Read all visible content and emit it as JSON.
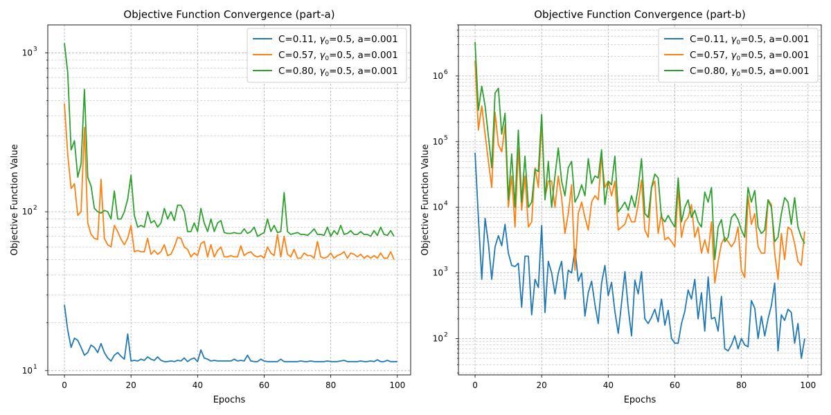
{
  "chart_data": [
    {
      "type": "line",
      "title": "Objective Function Convergence (part-a)",
      "xlabel": "Epochs",
      "ylabel": "Objective Function Value",
      "yscale": "log",
      "xlim": [
        -5,
        104
      ],
      "ylim": [
        9.4,
        1500
      ],
      "xticks": [
        0,
        20,
        40,
        60,
        80,
        100
      ],
      "yticks": [
        10,
        100,
        1000
      ],
      "yticks_major_labels": [
        "10",
        "10",
        "10"
      ],
      "yticks_major_exponents": [
        "1",
        "2",
        "3"
      ],
      "grid": true,
      "legend_position": "upper-right",
      "series": [
        {
          "name": "C=0.11, γ0=0.5, a=0.001",
          "legend_prefix": "C=0.11, ",
          "legend_symbol": "γ",
          "legend_subscript": "0",
          "legend_suffix": "=0.5, a=0.001",
          "color": "#1f77b4",
          "values": [
            26,
            18,
            14,
            16,
            15.5,
            14,
            12.5,
            13,
            14.5,
            14,
            13,
            14.8,
            13,
            12,
            11.5,
            12.5,
            13,
            12.3,
            11.8,
            17,
            11.5,
            11.6,
            11.5,
            11.8,
            11.6,
            12.2,
            11.8,
            11.6,
            12.2,
            11.6,
            11.4,
            11.4,
            11.5,
            11.4,
            11.6,
            11.5,
            12,
            11.4,
            11.8,
            12,
            11.4,
            13.5,
            12,
            11.8,
            11.5,
            11.6,
            11.5,
            11.5,
            11.5,
            11.5,
            11.5,
            11.8,
            11.5,
            11.6,
            11.5,
            12.5,
            11.5,
            11.4,
            11.4,
            11.8,
            11.5,
            11.4,
            11.4,
            11.4,
            11.4,
            11.8,
            11.4,
            11.4,
            11.4,
            11.4,
            11.4,
            11.5,
            11.4,
            11.4,
            11.5,
            11.4,
            11.4,
            11.4,
            11.4,
            11.5,
            11.4,
            11.4,
            11.4,
            11.5,
            11.6,
            11.4,
            11.4,
            11.4,
            11.4,
            11.5,
            11.4,
            11.4,
            11.5,
            11.4,
            11.7,
            11.4,
            11.4,
            11.6,
            11.4,
            11.4,
            11.4
          ]
        },
        {
          "name": "C=0.57, γ0=0.5, a=0.001",
          "legend_prefix": "C=0.57, ",
          "legend_symbol": "γ",
          "legend_subscript": "0",
          "legend_suffix": "=0.5, a=0.001",
          "color": "#ff7f0e",
          "values": [
            480,
            230,
            140,
            150,
            95,
            100,
            340,
            85,
            72,
            68,
            67,
            160,
            68,
            62,
            60,
            82,
            75,
            67,
            62,
            68,
            82,
            56,
            57,
            56,
            56,
            68,
            54,
            57,
            54,
            56,
            62,
            53,
            54,
            60,
            69,
            68,
            60,
            58,
            52,
            55,
            53,
            63,
            65,
            52,
            62,
            52,
            57,
            60,
            52,
            52,
            53,
            52,
            52,
            61,
            53,
            55,
            56,
            53,
            52,
            53,
            51,
            60,
            55,
            53,
            72,
            52,
            70,
            54,
            52,
            58,
            51,
            51,
            55,
            53,
            53,
            51,
            65,
            52,
            51,
            52,
            55,
            51,
            53,
            54,
            56,
            51,
            55,
            54,
            52,
            54,
            51,
            53,
            51,
            53,
            51,
            55,
            51,
            51,
            56,
            50
          ]
        },
        {
          "name": "C=0.80, γ0=0.5, a=0.001",
          "legend_prefix": "C=0.80, ",
          "legend_symbol": "γ",
          "legend_subscript": "0",
          "legend_suffix": "=0.5, a=0.001",
          "color": "#2ca02c",
          "values": [
            1150,
            750,
            245,
            280,
            165,
            200,
            590,
            165,
            145,
            105,
            100,
            98,
            102,
            100,
            90,
            135,
            90,
            90,
            100,
            120,
            170,
            95,
            80,
            82,
            80,
            100,
            85,
            88,
            80,
            85,
            105,
            90,
            100,
            88,
            110,
            110,
            100,
            75,
            75,
            85,
            75,
            105,
            85,
            75,
            90,
            75,
            85,
            88,
            74,
            73,
            73,
            74,
            73,
            73,
            78,
            73,
            75,
            80,
            70,
            72,
            74,
            90,
            75,
            82,
            74,
            75,
            132,
            75,
            72,
            73,
            74,
            72,
            72,
            71,
            74,
            78,
            72,
            72,
            71,
            80,
            70,
            76,
            72,
            82,
            72,
            73,
            76,
            72,
            72,
            75,
            72,
            72,
            70,
            76,
            71,
            80,
            72,
            71,
            76,
            70
          ]
        }
      ]
    },
    {
      "type": "line",
      "title": "Objective Function Convergence (part-b)",
      "xlabel": "Epochs",
      "ylabel": "Objective Function Value",
      "yscale": "log",
      "xlim": [
        -5,
        104
      ],
      "ylim": [
        28,
        6000000
      ],
      "xticks": [
        0,
        20,
        40,
        60,
        80,
        100
      ],
      "yticks": [
        100,
        1000,
        10000,
        100000,
        1000000
      ],
      "yticks_major_labels": [
        "10",
        "10",
        "10",
        "10",
        "10"
      ],
      "yticks_major_exponents": [
        "2",
        "3",
        "4",
        "5",
        "6"
      ],
      "grid": true,
      "legend_position": "upper-right",
      "series": [
        {
          "name": "C=0.11, γ0=0.5, a=0.001",
          "legend_prefix": "C=0.11, ",
          "legend_symbol": "γ",
          "legend_subscript": "0",
          "legend_suffix": "=0.5, a=0.001",
          "color": "#1f77b4",
          "values": [
            68000,
            7000,
            800,
            6800,
            2800,
            800,
            2500,
            3700,
            2600,
            5500,
            2000,
            1300,
            1250,
            1400,
            300,
            1800,
            1800,
            230,
            800,
            600,
            5300,
            250,
            1500,
            1000,
            480,
            1000,
            1500,
            400,
            1100,
            1000,
            2300,
            750,
            1000,
            220,
            500,
            750,
            330,
            170,
            700,
            1300,
            450,
            720,
            260,
            120,
            350,
            1050,
            290,
            110,
            780,
            480,
            1050,
            200,
            170,
            210,
            280,
            180,
            400,
            160,
            270,
            100,
            85,
            85,
            170,
            260,
            550,
            400,
            800,
            200,
            500,
            130,
            870,
            200,
            210,
            130,
            440,
            70,
            65,
            80,
            110,
            70,
            100,
            80,
            75,
            380,
            290,
            100,
            220,
            110,
            200,
            320,
            700,
            65,
            230,
            190,
            280,
            250,
            85,
            170,
            50,
            100
          ]
        },
        {
          "name": "C=0.57, γ0=0.5, a=0.001",
          "legend_prefix": "C=0.57, ",
          "legend_symbol": "γ",
          "legend_subscript": "0",
          "legend_suffix": "=0.5, a=0.001",
          "color": "#ff7f0e",
          "values": [
            1700000,
            150000,
            350000,
            130000,
            50000,
            20000,
            280000,
            90000,
            70000,
            180000,
            10000,
            30000,
            5000,
            80000,
            9000,
            30000,
            5000,
            6000,
            40000,
            20000,
            200000,
            14000,
            25000,
            25000,
            10000,
            30000,
            14000,
            4000,
            8000,
            22000,
            1100,
            8000,
            12000,
            7000,
            4500,
            12000,
            15000,
            13000,
            60000,
            20000,
            25000,
            15000,
            25000,
            4500,
            5000,
            5500,
            8000,
            6000,
            6000,
            11000,
            26000,
            4500,
            3500,
            20000,
            25000,
            4000,
            8000,
            3200,
            3500,
            3000,
            2500,
            20000,
            3500,
            6000,
            7000,
            11000,
            3500,
            5000,
            2000,
            3200,
            2000,
            6000,
            700,
            1500,
            2800,
            3500,
            3000,
            2500,
            3000,
            5000,
            1100,
            850,
            15000,
            5500,
            8000,
            2500,
            2000,
            2000,
            13000,
            11000,
            2000,
            800,
            4000,
            1600,
            5000,
            4500,
            2800,
            1500,
            1300,
            4300
          ]
        },
        {
          "name": "C=0.80, γ0=0.5, a=0.001",
          "legend_prefix": "C=0.80, ",
          "legend_symbol": "γ",
          "legend_subscript": "0",
          "legend_suffix": "=0.5, a=0.001",
          "color": "#2ca02c",
          "values": [
            3300000,
            300000,
            700000,
            350000,
            120000,
            40000,
            550000,
            650000,
            130000,
            270000,
            13000,
            65000,
            10000,
            150000,
            12000,
            60000,
            10000,
            12000,
            38000,
            35000,
            260000,
            13000,
            50000,
            10000,
            30000,
            80000,
            25000,
            15000,
            40000,
            50000,
            12000,
            15000,
            22000,
            15000,
            55000,
            23000,
            30000,
            28000,
            75000,
            11000,
            25000,
            22000,
            60000,
            8500,
            10000,
            12000,
            9000,
            15000,
            10000,
            20000,
            55000,
            8000,
            7000,
            20000,
            32000,
            28000,
            7000,
            6000,
            7500,
            6000,
            5000,
            28000,
            6000,
            10000,
            13000,
            7000,
            9000,
            6000,
            5000,
            17000,
            12000,
            20000,
            1600,
            5000,
            6500,
            3000,
            3500,
            7000,
            8000,
            6500,
            4500,
            3500,
            20000,
            12000,
            18000,
            5000,
            4000,
            4500,
            13000,
            10000,
            3000,
            3500,
            8000,
            14000,
            12000,
            5500,
            14000,
            5000,
            3500,
            2800
          ]
        }
      ]
    }
  ]
}
